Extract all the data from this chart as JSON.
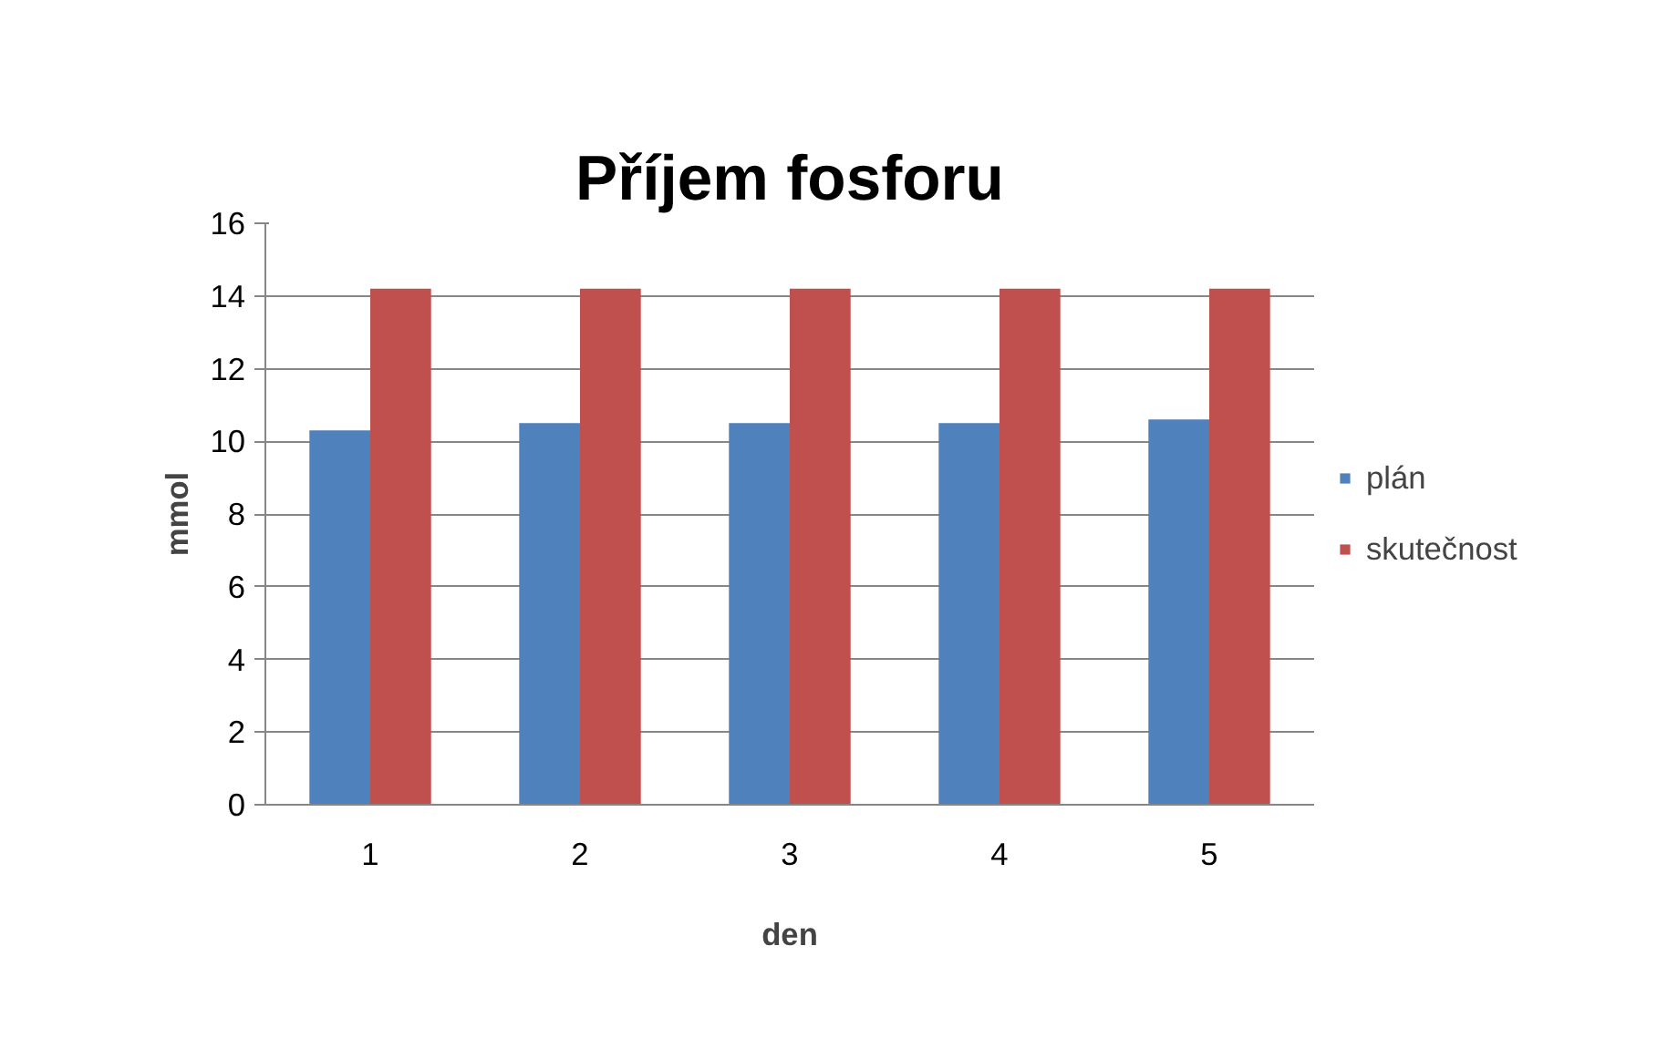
{
  "chart_data": {
    "type": "bar",
    "title": "Příjem fosforu",
    "xlabel": "den",
    "ylabel": "mmol",
    "categories": [
      "1",
      "2",
      "3",
      "4",
      "5"
    ],
    "series": [
      {
        "name": "plán",
        "color": "#4f81bd",
        "values": [
          10.3,
          10.5,
          10.5,
          10.5,
          10.6
        ]
      },
      {
        "name": "skutečnost",
        "color": "#c0504d",
        "values": [
          14.2,
          14.2,
          14.2,
          14.2,
          14.2
        ]
      }
    ],
    "ylim": [
      0,
      16
    ],
    "yticks": [
      0,
      2,
      4,
      6,
      8,
      10,
      12,
      14,
      16
    ],
    "grid": "y",
    "legend": "right"
  }
}
